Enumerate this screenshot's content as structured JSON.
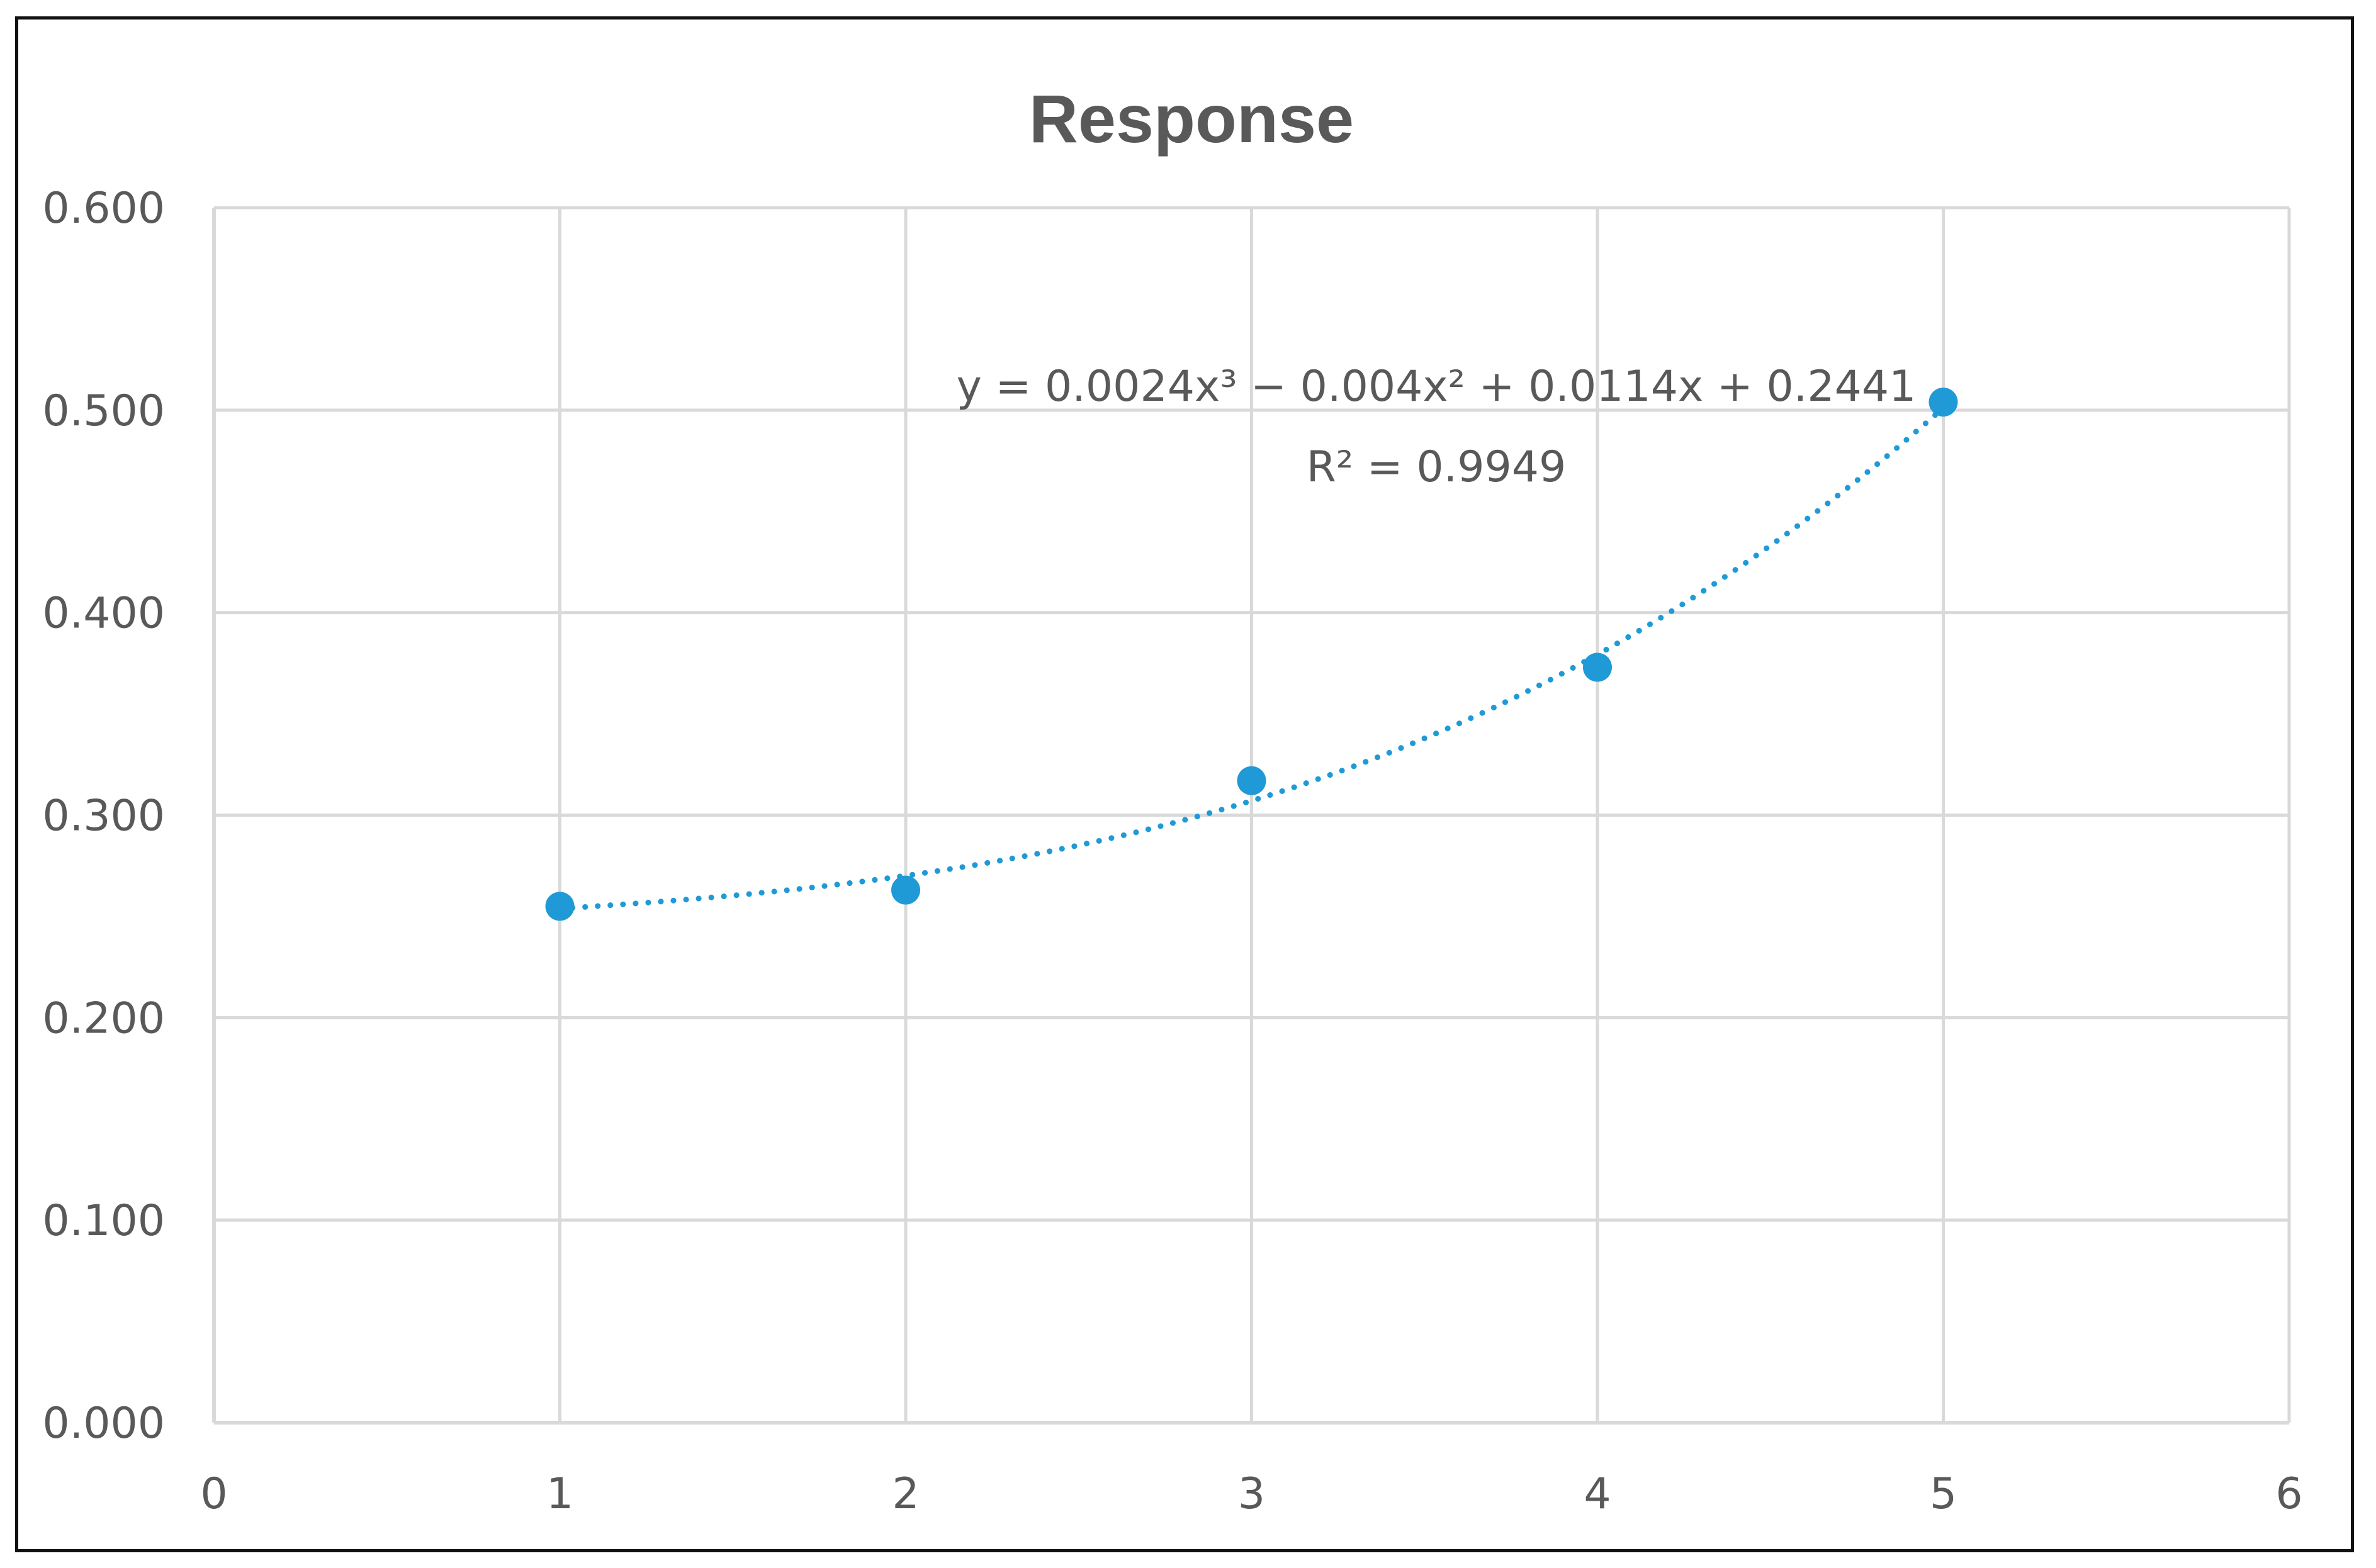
{
  "chart_data": {
    "type": "scatter",
    "title": "Response",
    "xlabel": "",
    "ylabel": "",
    "xlim": [
      0,
      6
    ],
    "ylim": [
      0,
      0.6
    ],
    "x_ticks": [
      "0",
      "1",
      "2",
      "3",
      "4",
      "5",
      "6"
    ],
    "y_ticks": [
      "0.000",
      "0.100",
      "0.200",
      "0.300",
      "0.400",
      "0.500",
      "0.600"
    ],
    "grid": true,
    "legend": "none",
    "series": [
      {
        "color": "#1f9ad6",
        "points": [
          {
            "x": 1,
            "y": 0.255
          },
          {
            "x": 2,
            "y": 0.263
          },
          {
            "x": 3,
            "y": 0.317
          },
          {
            "x": 4,
            "y": 0.373
          },
          {
            "x": 5,
            "y": 0.504
          }
        ]
      }
    ],
    "trendline": {
      "type": "polynomial",
      "order": 3,
      "style": "dotted",
      "coefficients": [
        0.0024,
        -0.004,
        0.0114,
        0.2441
      ],
      "x_range": [
        1,
        5
      ],
      "equation_text": "y = 0.0024x³ − 0.004x² + 0.0114x + 0.2441",
      "r2_text": "R² = 0.9949"
    }
  }
}
